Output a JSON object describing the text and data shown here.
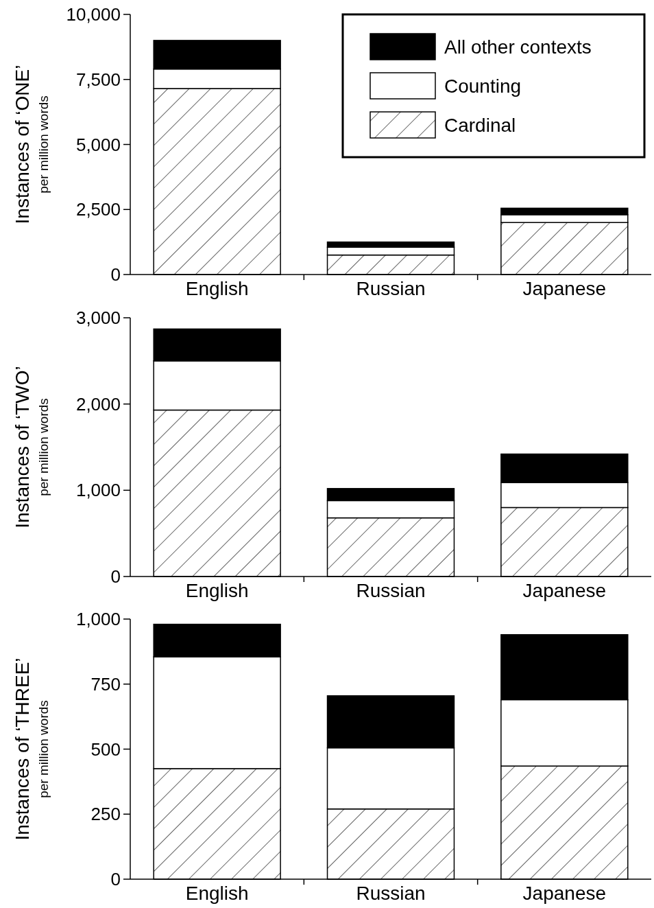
{
  "chart_data": [
    {
      "type": "bar",
      "stacked": true,
      "ylabel": "Instances of ‘ONE’\nper million words",
      "categories": [
        "English",
        "Russian",
        "Japanese"
      ],
      "ylim": [
        0,
        10000
      ],
      "yticks": [
        {
          "value": 0,
          "label": "0"
        },
        {
          "value": 2500,
          "label": "2,500"
        },
        {
          "value": 5000,
          "label": "5,000"
        },
        {
          "value": 7500,
          "label": "7,500"
        },
        {
          "value": 10000,
          "label": "10,000"
        }
      ],
      "legend": "top right",
      "series": [
        {
          "name": "Cardinal",
          "color": "#ffffff",
          "values": [
            7150,
            750,
            2000
          ]
        },
        {
          "name": "Counting",
          "color": "#ffffff",
          "values": [
            750,
            300,
            300
          ]
        },
        {
          "name": "All other contexts",
          "color": "#000000",
          "values": [
            1100,
            200,
            250
          ]
        }
      ]
    },
    {
      "type": "bar",
      "stacked": true,
      "ylabel": "Instances of ‘TWO’\nper million words",
      "categories": [
        "English",
        "Russian",
        "Japanese"
      ],
      "ylim": [
        0,
        3000
      ],
      "yticks": [
        {
          "value": 0,
          "label": "0"
        },
        {
          "value": 1000,
          "label": "1,000"
        },
        {
          "value": 2000,
          "label": "2,000"
        },
        {
          "value": 3000,
          "label": "3,000"
        }
      ],
      "series": [
        {
          "color": "#ffffff",
          "values": [
            1930,
            680,
            800
          ]
        },
        {
          "color": "#ffffff",
          "values": [
            570,
            200,
            290
          ]
        },
        {
          "color": "#000000",
          "values": [
            370,
            140,
            330
          ]
        }
      ]
    },
    {
      "type": "bar",
      "stacked": true,
      "ylabel": "Instances of ‘THREE’\nper million words",
      "categories": [
        "English",
        "Russian",
        "Japanese"
      ],
      "ylim": [
        0,
        1000
      ],
      "yticks": [
        {
          "value": 0,
          "label": "0"
        },
        {
          "value": 250,
          "label": "250"
        },
        {
          "value": 500,
          "label": "500"
        },
        {
          "value": 750,
          "label": "750"
        },
        {
          "value": 1000,
          "label": "1,000"
        }
      ],
      "series": [
        {
          "color": "#ffffff",
          "values": [
            425,
            270,
            435
          ]
        },
        {
          "color": "#ffffff",
          "values": [
            430,
            235,
            255
          ]
        },
        {
          "color": "#000000",
          "values": [
            125,
            200,
            250
          ]
        }
      ]
    }
  ]
}
